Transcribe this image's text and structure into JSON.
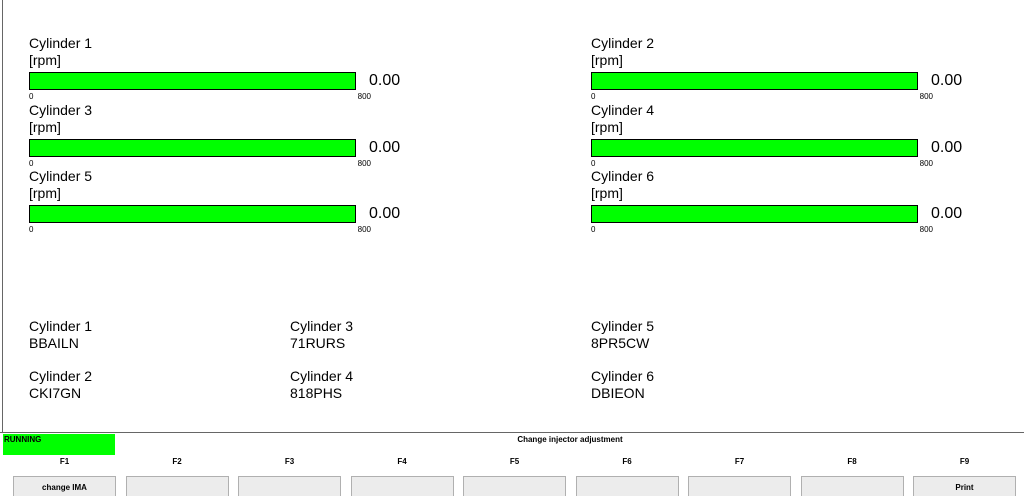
{
  "gauges": [
    {
      "name": "Cylinder 1",
      "unit": "[rpm]",
      "value": "0.00",
      "min": 0,
      "max": 800
    },
    {
      "name": "Cylinder 2",
      "unit": "[rpm]",
      "value": "0.00",
      "min": 0,
      "max": 800
    },
    {
      "name": "Cylinder 3",
      "unit": "[rpm]",
      "value": "0.00",
      "min": 0,
      "max": 800
    },
    {
      "name": "Cylinder 4",
      "unit": "[rpm]",
      "value": "0.00",
      "min": 0,
      "max": 800
    },
    {
      "name": "Cylinder 5",
      "unit": "[rpm]",
      "value": "0.00",
      "min": 0,
      "max": 800
    },
    {
      "name": "Cylinder 6",
      "unit": "[rpm]",
      "value": "0.00",
      "min": 0,
      "max": 800
    }
  ],
  "codes": [
    {
      "name": "Cylinder 1",
      "code": "BBAILN"
    },
    {
      "name": "Cylinder 2",
      "code": "CKI7GN"
    },
    {
      "name": "Cylinder 3",
      "code": "71RURS"
    },
    {
      "name": "Cylinder 4",
      "code": "818PHS"
    },
    {
      "name": "Cylinder 5",
      "code": "8PR5CW"
    },
    {
      "name": "Cylinder 6",
      "code": "DBIEON"
    }
  ],
  "status": "RUNNING",
  "screen_title": "Change injector adjustment",
  "function_keys": [
    {
      "key": "F1",
      "label": "change IMA"
    },
    {
      "key": "F2"
    },
    {
      "key": "F3"
    },
    {
      "key": "F4"
    },
    {
      "key": "F5"
    },
    {
      "key": "F6"
    },
    {
      "key": "F7"
    },
    {
      "key": "F8"
    },
    {
      "key": "F9",
      "label": "Print"
    }
  ]
}
